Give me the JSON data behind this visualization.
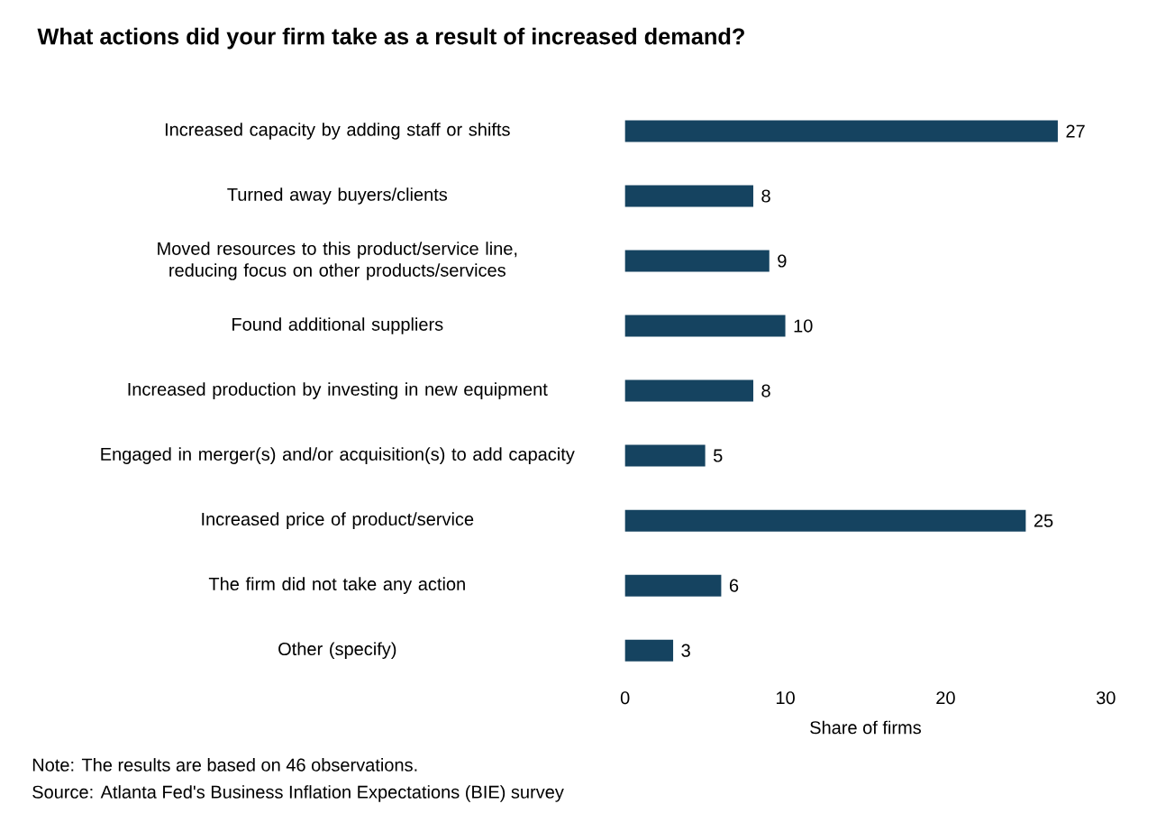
{
  "chart_data": {
    "type": "bar",
    "orientation": "horizontal",
    "title": "What actions did your firm take as a result of increased demand?",
    "categories": [
      "Increased capacity by adding staff or shifts",
      "Turned away buyers/clients",
      "Moved resources to this product/service line, reducing focus on other products/services",
      "Found additional suppliers",
      "Increased production by investing in new equipment",
      "Engaged in merger(s) and/or acquisition(s) to add capacity",
      "Increased price of product/service",
      "The firm did not take any action",
      "Other (specify)"
    ],
    "values": [
      27,
      8,
      9,
      10,
      8,
      5,
      25,
      6,
      3
    ],
    "color": "#154360",
    "xlim": [
      0,
      30
    ],
    "xticks": [
      0,
      10,
      20,
      30
    ],
    "xlabel": "Share of firms",
    "data_labels": true,
    "annotations": [
      "Note: The results are based on 46 observations.",
      "Source: Atlanta Fed's Business Inflation Expectations (BIE) survey"
    ]
  }
}
